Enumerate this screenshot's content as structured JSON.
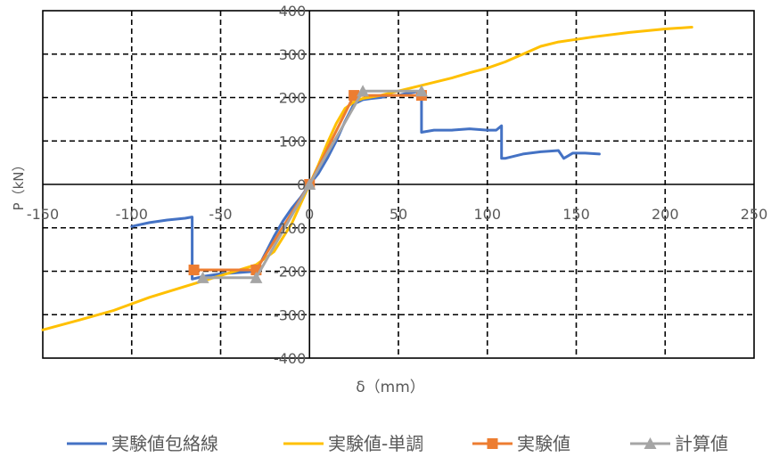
{
  "chart_data": {
    "type": "line",
    "title": "",
    "xlabel": "δ（mm）",
    "ylabel": "P（kN）",
    "xlim": [
      -150,
      250
    ],
    "ylim": [
      -400,
      400
    ],
    "x_ticks": [
      -150,
      -100,
      -50,
      0,
      50,
      100,
      150,
      200,
      250
    ],
    "y_ticks": [
      -400,
      -300,
      -200,
      -100,
      0,
      100,
      200,
      300,
      400
    ],
    "grid": true,
    "grid_style": "dashed",
    "axes_cross_at_origin": true,
    "legend_position": "bottom",
    "series": [
      {
        "name": "実験値包絡線",
        "color": "#4472C4",
        "marker": "none",
        "points": [
          [
            -100,
            -97
          ],
          [
            -98,
            -95
          ],
          [
            -90,
            -88
          ],
          [
            -80,
            -82
          ],
          [
            -70,
            -78
          ],
          [
            -66,
            -75
          ],
          [
            -66,
            -218
          ],
          [
            -60,
            -212
          ],
          [
            -50,
            -206
          ],
          [
            -40,
            -203
          ],
          [
            -30,
            -200
          ],
          [
            -25,
            -160
          ],
          [
            -20,
            -120
          ],
          [
            -15,
            -85
          ],
          [
            -10,
            -55
          ],
          [
            -5,
            -30
          ],
          [
            0,
            0
          ],
          [
            5,
            25
          ],
          [
            10,
            60
          ],
          [
            15,
            100
          ],
          [
            20,
            145
          ],
          [
            25,
            185
          ],
          [
            30,
            195
          ],
          [
            35,
            198
          ],
          [
            40,
            200
          ],
          [
            45,
            205
          ],
          [
            50,
            205
          ],
          [
            55,
            210
          ],
          [
            60,
            213
          ],
          [
            62,
            213
          ],
          [
            63,
            215
          ],
          [
            63,
            120
          ],
          [
            70,
            125
          ],
          [
            80,
            125
          ],
          [
            90,
            128
          ],
          [
            100,
            125
          ],
          [
            105,
            125
          ],
          [
            108,
            135
          ],
          [
            108,
            60
          ],
          [
            110,
            60
          ],
          [
            120,
            70
          ],
          [
            130,
            75
          ],
          [
            140,
            78
          ],
          [
            143,
            60
          ],
          [
            148,
            72
          ],
          [
            155,
            72
          ],
          [
            163,
            70
          ]
        ]
      },
      {
        "name": "実験値-単調",
        "color": "#FFC000",
        "marker": "none",
        "points": [
          [
            -150,
            -335
          ],
          [
            -130,
            -313
          ],
          [
            -110,
            -290
          ],
          [
            -90,
            -260
          ],
          [
            -70,
            -235
          ],
          [
            -50,
            -210
          ],
          [
            -30,
            -185
          ],
          [
            -20,
            -155
          ],
          [
            -10,
            -90
          ],
          [
            -5,
            -45
          ],
          [
            0,
            0
          ],
          [
            5,
            45
          ],
          [
            10,
            95
          ],
          [
            15,
            140
          ],
          [
            20,
            175
          ],
          [
            25,
            190
          ],
          [
            30,
            198
          ],
          [
            40,
            205
          ],
          [
            50,
            215
          ],
          [
            60,
            225
          ],
          [
            70,
            235
          ],
          [
            80,
            245
          ],
          [
            90,
            257
          ],
          [
            100,
            268
          ],
          [
            110,
            282
          ],
          [
            120,
            300
          ],
          [
            130,
            318
          ],
          [
            140,
            328
          ],
          [
            160,
            340
          ],
          [
            180,
            350
          ],
          [
            200,
            358
          ],
          [
            215,
            362
          ]
        ]
      },
      {
        "name": "実験値",
        "color": "#ED7D31",
        "marker": "square",
        "points": [
          [
            -65,
            -197
          ],
          [
            -30,
            -197
          ],
          [
            0,
            0
          ],
          [
            25,
            205
          ],
          [
            63,
            205
          ]
        ]
      },
      {
        "name": "計算値",
        "color": "#A5A5A5",
        "marker": "triangle",
        "points": [
          [
            -60,
            -215
          ],
          [
            -30,
            -215
          ],
          [
            0,
            0
          ],
          [
            30,
            215
          ],
          [
            63,
            215
          ]
        ]
      }
    ]
  }
}
